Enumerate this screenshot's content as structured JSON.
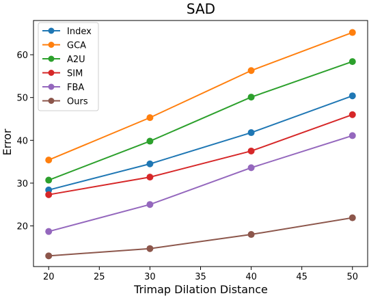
{
  "chart_data": {
    "type": "line",
    "title": "SAD",
    "xlabel": "Trimap Dilation Distance",
    "ylabel": "Error",
    "x": [
      20,
      30,
      40,
      50
    ],
    "xlim": [
      18.5,
      51.5
    ],
    "ylim": [
      10.5,
      68
    ],
    "xticks": [
      20,
      25,
      30,
      35,
      40,
      45,
      50
    ],
    "yticks": [
      20,
      30,
      40,
      50,
      60
    ],
    "grid": false,
    "legend_position": "top-left",
    "series": [
      {
        "name": "Index",
        "color": "#1f77b4",
        "values": [
          28.4,
          34.5,
          41.8,
          50.4
        ]
      },
      {
        "name": "GCA",
        "color": "#ff7f0e",
        "values": [
          35.4,
          45.3,
          56.3,
          65.2
        ]
      },
      {
        "name": "A2U",
        "color": "#2ca02c",
        "values": [
          30.7,
          39.8,
          50.1,
          58.4
        ]
      },
      {
        "name": "SIM",
        "color": "#d62728",
        "values": [
          27.3,
          31.4,
          37.5,
          46.0
        ]
      },
      {
        "name": "FBA",
        "color": "#9467bd",
        "values": [
          18.7,
          25.0,
          33.6,
          41.1
        ]
      },
      {
        "name": "Ours",
        "color": "#8c564b",
        "values": [
          13.0,
          14.7,
          18.0,
          21.9
        ]
      }
    ]
  }
}
